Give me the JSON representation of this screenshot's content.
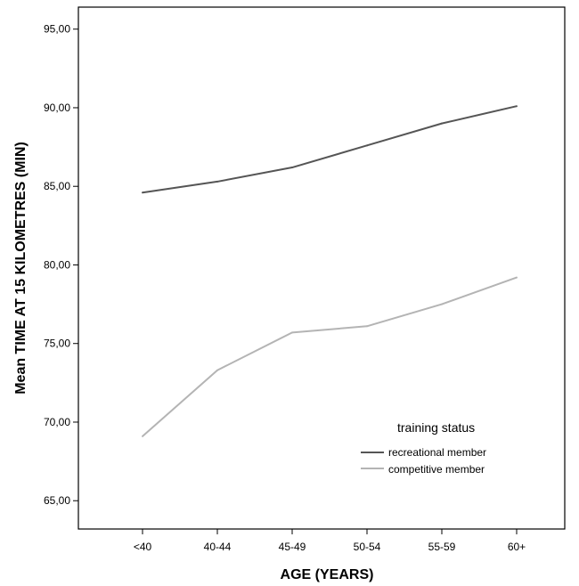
{
  "chart_data": {
    "type": "line",
    "title": "",
    "xlabel": "AGE (YEARS)",
    "ylabel": "Mean TIME AT 15 KILOMETRES (MIN)",
    "categories": [
      "<40",
      "40-44",
      "45-49",
      "50-54",
      "55-59",
      "60+"
    ],
    "ylim": [
      63.2,
      96.4
    ],
    "yticks": [
      "65,00",
      "70,00",
      "75,00",
      "80,00",
      "85,00",
      "90,00",
      "95,00"
    ],
    "grid": false,
    "legend": {
      "title": "training status",
      "placement": "bottom-right"
    },
    "series": [
      {
        "name": "recreational member",
        "color": "#555555",
        "values": [
          84.6,
          85.3,
          86.2,
          87.6,
          89.0,
          90.1
        ]
      },
      {
        "name": "competitive member",
        "color": "#b4b4b4",
        "values": [
          69.1,
          73.3,
          75.7,
          76.1,
          77.5,
          79.2
        ]
      }
    ]
  }
}
